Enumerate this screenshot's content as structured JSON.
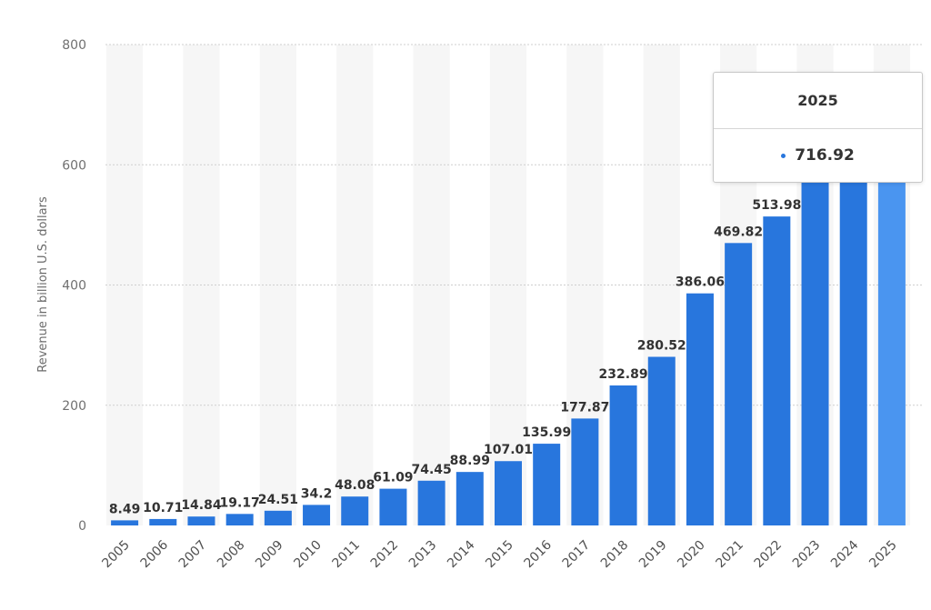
{
  "chart_data": {
    "type": "bar",
    "categories": [
      "2005",
      "2006",
      "2007",
      "2008",
      "2009",
      "2010",
      "2011",
      "2012",
      "2013",
      "2014",
      "2015",
      "2016",
      "2017",
      "2018",
      "2019",
      "2020",
      "2021",
      "2022",
      "2023",
      "2024",
      "2025"
    ],
    "values": [
      8.49,
      10.71,
      14.84,
      19.17,
      24.51,
      34.2,
      48.08,
      61.09,
      74.45,
      88.99,
      107.01,
      135.99,
      177.87,
      232.89,
      280.52,
      386.06,
      469.82,
      513.98,
      null,
      null,
      716.92
    ],
    "value_labels": [
      "8.49",
      "10.71",
      "14.84",
      "19.17",
      "24.51",
      "34.2",
      "48.08",
      "61.09",
      "74.45",
      "88.99",
      "107.01",
      "135.99",
      "177.87",
      "232.89",
      "280.52",
      "386.06",
      "469.82",
      "513.98",
      "",
      "",
      ""
    ],
    "ylabel": "Revenue in billion U.S. dollars",
    "xlabel": "",
    "ylim": [
      0,
      800
    ],
    "y_ticks": [
      "0",
      "200",
      "400",
      "600",
      "800"
    ],
    "grid": true,
    "highlighted_category": "2025",
    "colors": {
      "bar": "#2876dd",
      "highlight": "#4a95f0",
      "band": "#f6f6f6"
    }
  },
  "tooltip": {
    "title": "2025",
    "value": "716.92"
  }
}
